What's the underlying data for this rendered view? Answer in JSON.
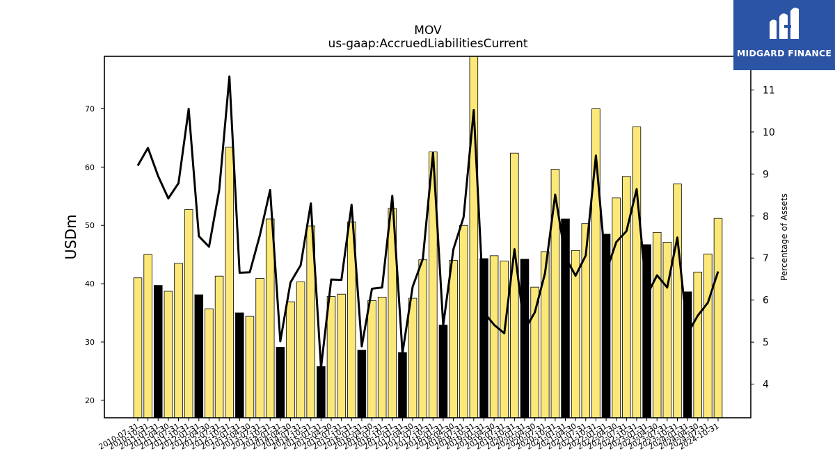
{
  "brand": {
    "name": "MIDGARD FINANCE",
    "bg": "#2b54a5"
  },
  "chart_data": {
    "type": "bar",
    "title": "MOV",
    "subtitle": "us-gaap:AccruedLiabilitiesCurrent",
    "ylabel": "USDm",
    "y2label": "Percentage of Assets",
    "ylim": [
      17,
      79
    ],
    "y2lim": [
      3.2,
      11.8
    ],
    "yticks": [
      20,
      30,
      40,
      50,
      60,
      70
    ],
    "y2ticks": [
      4,
      5,
      6,
      7,
      8,
      9,
      10,
      11
    ],
    "colors": {
      "bar": "#fbe879",
      "bar_q4": "#000000",
      "line": "#000000"
    },
    "categories": [
      "2010-07-31",
      "2010-10-31",
      "2011-01-31",
      "2011-04-30",
      "2011-07-31",
      "2011-10-31",
      "2012-01-31",
      "2012-04-30",
      "2012-07-31",
      "2012-10-31",
      "2013-01-31",
      "2013-04-30",
      "2013-07-31",
      "2013-10-31",
      "2014-01-31",
      "2014-04-30",
      "2014-07-31",
      "2014-10-31",
      "2015-01-31",
      "2015-04-30",
      "2015-07-31",
      "2015-10-31",
      "2016-01-31",
      "2016-04-30",
      "2016-07-31",
      "2016-10-31",
      "2017-01-31",
      "2017-04-30",
      "2017-07-31",
      "2017-10-31",
      "2018-01-31",
      "2018-04-30",
      "2018-07-31",
      "2018-10-31",
      "2019-01-31",
      "2019-04-30",
      "2019-07-31",
      "2019-10-31",
      "2020-01-31",
      "2020-04-30",
      "2020-07-31",
      "2020-10-31",
      "2021-01-31",
      "2021-04-30",
      "2021-07-31",
      "2021-10-31",
      "2022-01-31",
      "2022-04-30",
      "2022-07-31",
      "2022-10-31",
      "2023-01-31",
      "2023-04-30",
      "2023-07-31",
      "2023-10-31",
      "2024-01-31",
      "2024-04-30",
      "2024-07-31",
      "2024-10-31"
    ],
    "series": [
      {
        "values": [
          41.0,
          45.0,
          39.7,
          38.7,
          43.5,
          52.7,
          38.1,
          35.7,
          41.3,
          63.4,
          35.0,
          34.4,
          40.9,
          51.1,
          29.1,
          36.9,
          40.3,
          49.9,
          25.8,
          37.8,
          38.2,
          50.6,
          28.6,
          37.1,
          37.7,
          52.9,
          28.2,
          37.5,
          44.1,
          62.6,
          32.9,
          44.0,
          50.0,
          79.0,
          44.3,
          44.8,
          43.9,
          62.4,
          44.2,
          39.4,
          45.5,
          59.6,
          51.1,
          45.7,
          50.3,
          70.0,
          48.5,
          54.7,
          58.4,
          66.9,
          46.7,
          48.8,
          47.1,
          57.1,
          38.6,
          42.0,
          45.1,
          51.2
        ],
        "highlight": [
          false,
          false,
          true,
          false,
          false,
          false,
          true,
          false,
          false,
          false,
          true,
          false,
          false,
          false,
          true,
          false,
          false,
          false,
          true,
          false,
          false,
          false,
          true,
          false,
          false,
          false,
          true,
          false,
          false,
          false,
          true,
          false,
          false,
          false,
          true,
          false,
          false,
          false,
          true,
          false,
          false,
          false,
          true,
          false,
          false,
          false,
          true,
          false,
          false,
          false,
          true,
          false,
          false,
          false,
          true,
          false,
          false,
          false
        ]
      },
      {
        "axis": "right",
        "values": [
          9.2,
          9.62,
          8.95,
          8.42,
          8.78,
          10.55,
          7.52,
          7.27,
          8.62,
          11.32,
          6.65,
          6.66,
          7.55,
          8.62,
          5.02,
          6.42,
          6.83,
          8.3,
          4.39,
          6.49,
          6.48,
          8.27,
          4.9,
          6.27,
          6.3,
          8.48,
          4.74,
          6.32,
          6.98,
          9.51,
          5.4,
          7.21,
          7.97,
          10.52,
          5.71,
          5.41,
          5.21,
          7.21,
          5.29,
          5.71,
          6.64,
          8.51,
          7.02,
          6.58,
          7.06,
          9.44,
          6.67,
          7.38,
          7.64,
          8.64,
          6.11,
          6.59,
          6.3,
          7.49,
          5.2,
          5.63,
          5.94,
          6.68
        ]
      }
    ]
  }
}
